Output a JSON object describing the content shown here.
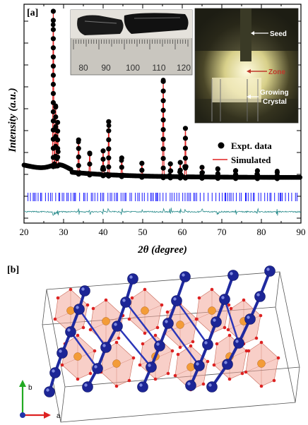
{
  "panel_a": {
    "label": "[a]",
    "xlabel": "2θ (degree)",
    "ylabel": "Intensity (a.u.)",
    "legend": {
      "expt": "Expt. data",
      "sim": "Simulated"
    },
    "inset_photo_ruler": [
      "80",
      "90",
      "100",
      "110",
      "120"
    ],
    "inset_furnace": {
      "seed": "Seed",
      "zone": "Zone",
      "growing1": "Growing",
      "growing2": "Crystal"
    }
  },
  "panel_b": {
    "label": "[b]",
    "axis_b": "b",
    "axis_a": "a"
  },
  "chart_data": {
    "type": "scatter",
    "xlabel": "2θ (degree)",
    "ylabel": "Intensity (a.u.)",
    "xlim": [
      20,
      90
    ],
    "xticks": [
      20,
      30,
      40,
      50,
      60,
      70,
      80,
      90
    ],
    "peaks": [
      {
        "x": 27.4,
        "y": 100
      },
      {
        "x": 28.0,
        "y": 38
      },
      {
        "x": 28.5,
        "y": 28
      },
      {
        "x": 33.8,
        "y": 22
      },
      {
        "x": 36.6,
        "y": 14
      },
      {
        "x": 40.0,
        "y": 16
      },
      {
        "x": 41.4,
        "y": 35
      },
      {
        "x": 44.7,
        "y": 12
      },
      {
        "x": 49.8,
        "y": 9
      },
      {
        "x": 55.2,
        "y": 62
      },
      {
        "x": 57.0,
        "y": 9
      },
      {
        "x": 59.5,
        "y": 10
      },
      {
        "x": 60.8,
        "y": 32
      },
      {
        "x": 65.0,
        "y": 7
      },
      {
        "x": 69.0,
        "y": 6
      },
      {
        "x": 73.5,
        "y": 5
      },
      {
        "x": 79.0,
        "y": 5
      },
      {
        "x": 84.0,
        "y": 4
      }
    ],
    "background_level": 8,
    "series": [
      {
        "name": "Expt. data",
        "style": "black-dots",
        "color": "#000000"
      },
      {
        "name": "Simulated",
        "style": "red-line",
        "color": "#e02020"
      }
    ],
    "bragg_marks_color": "#1a1aff",
    "difference_color": "#2a8c8c"
  }
}
